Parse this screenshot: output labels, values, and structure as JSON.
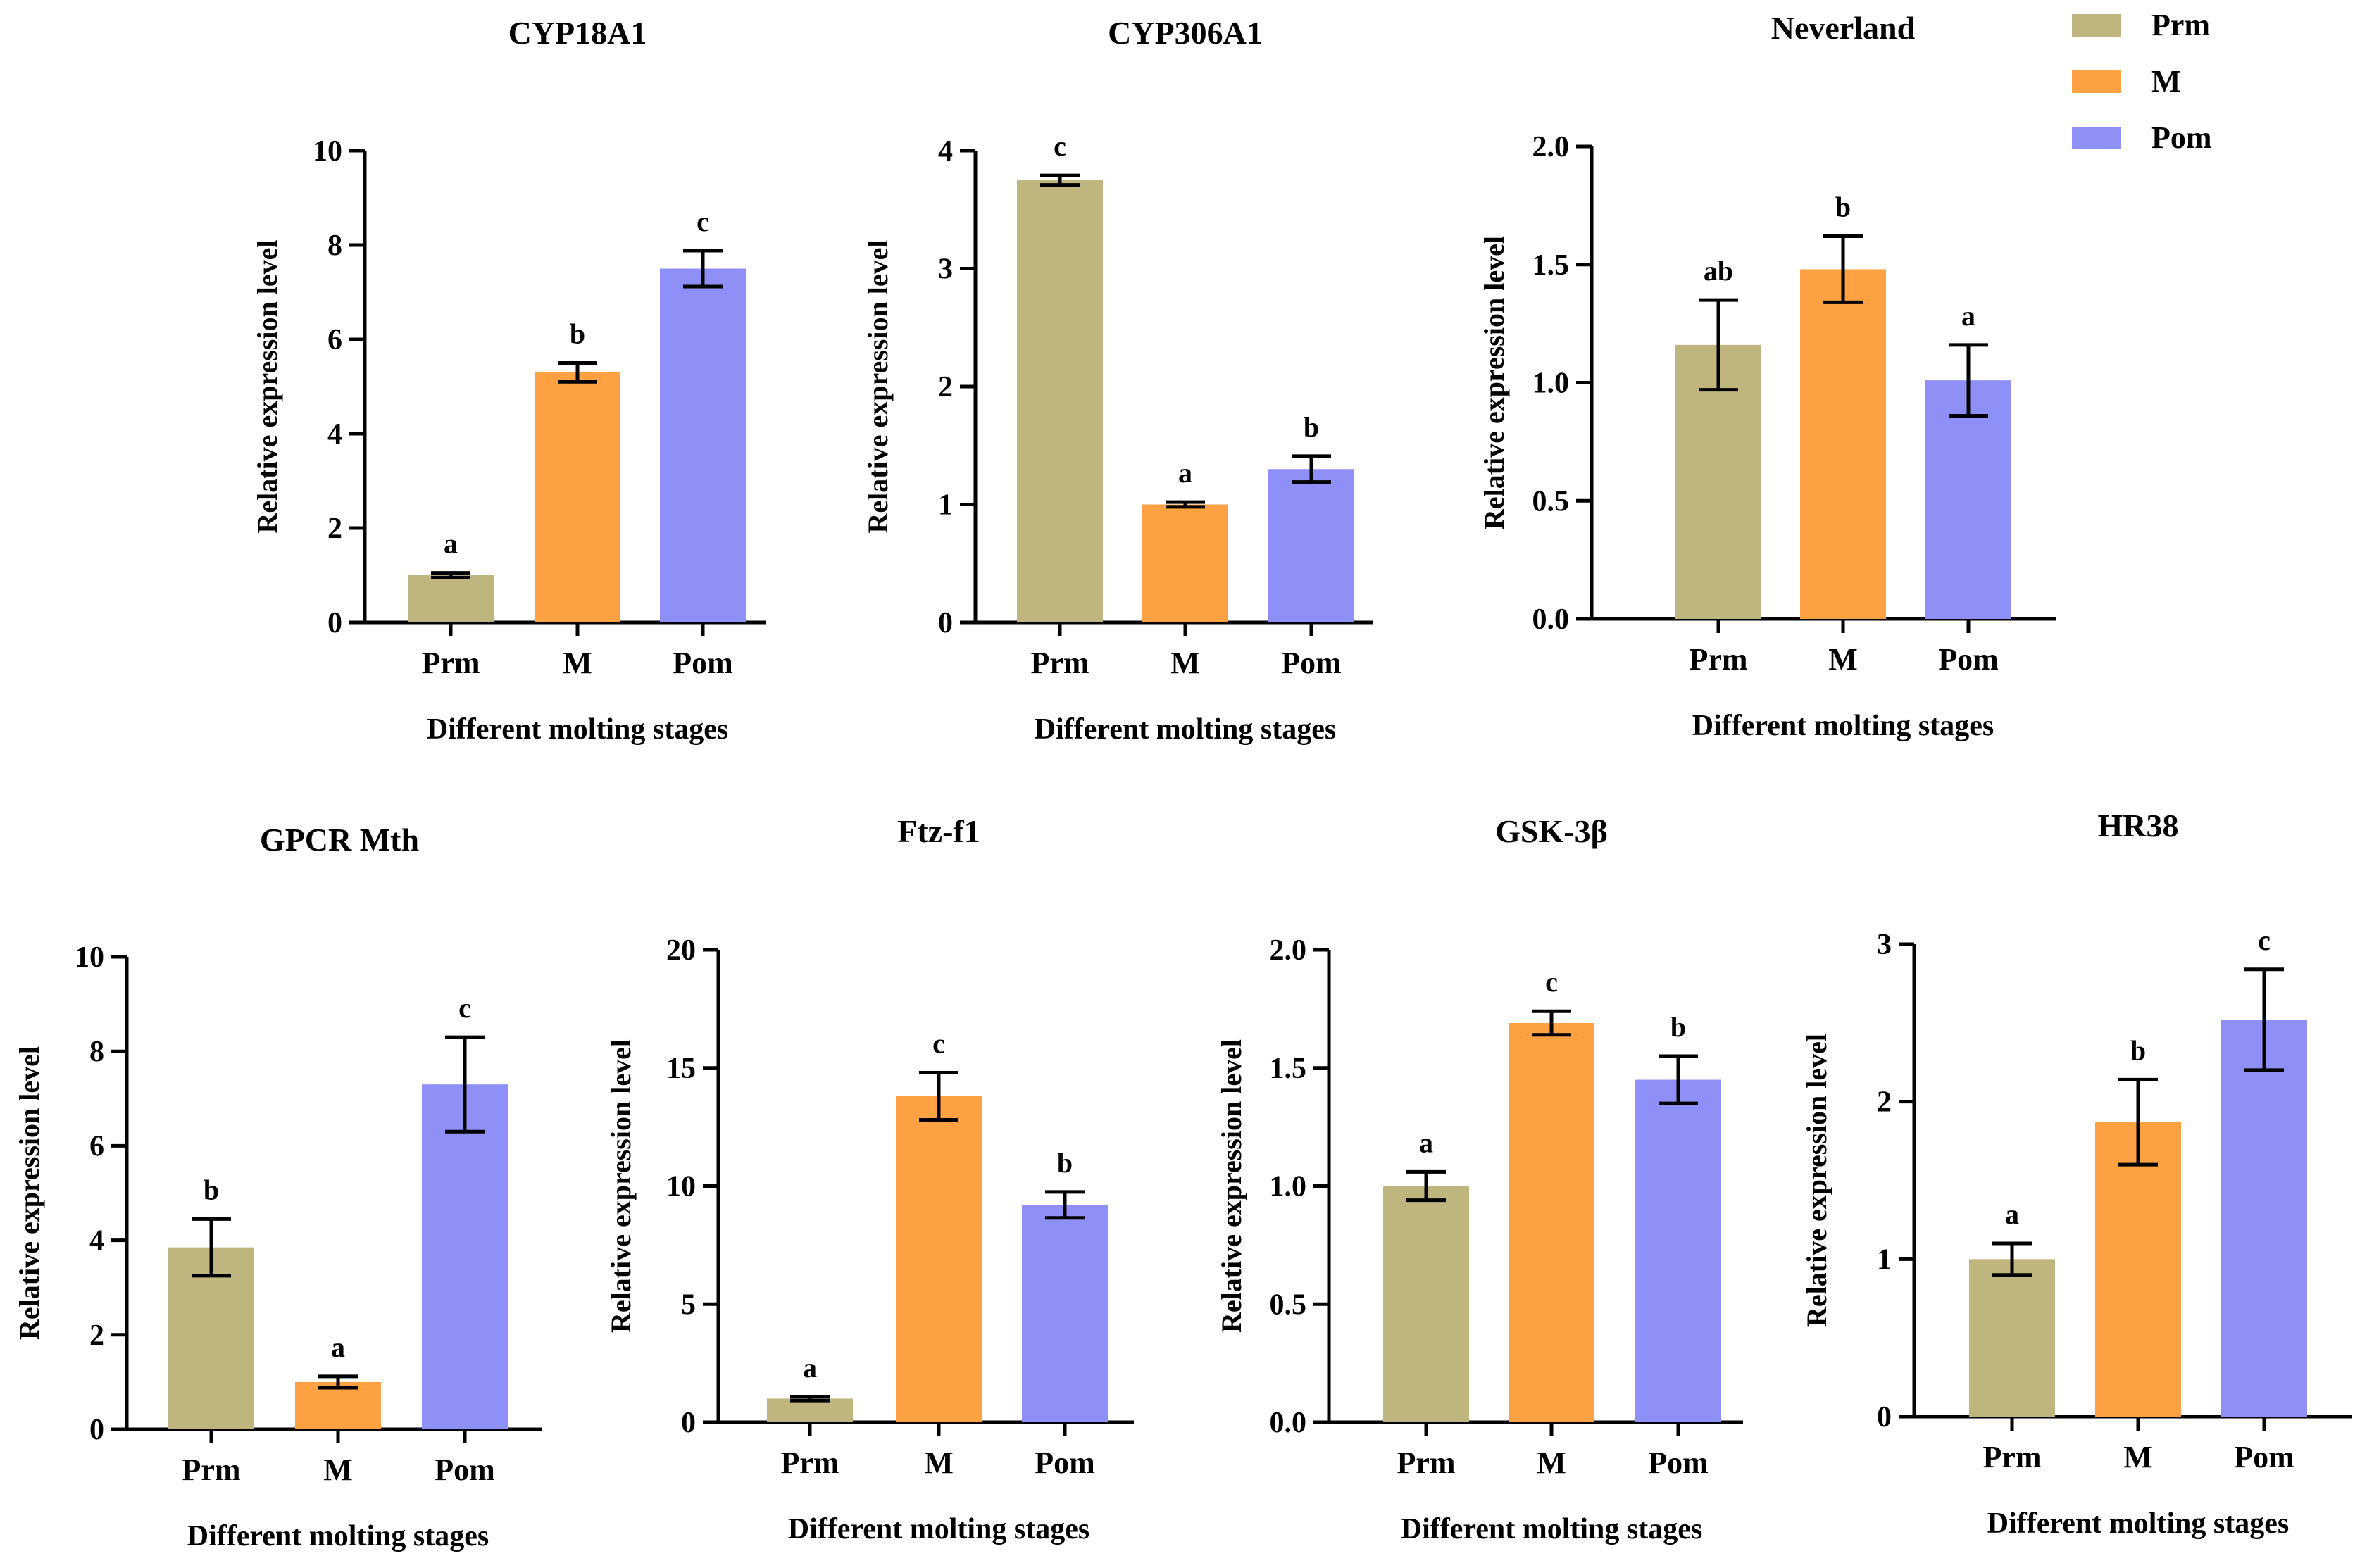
{
  "colors": {
    "Prm": "#bfb67f",
    "M": "#fda142",
    "Pom": "#8f8ff8",
    "axis": "#000000"
  },
  "legend": {
    "location": "top-right",
    "entries": [
      {
        "label": "Prm",
        "color": "#bfb67f"
      },
      {
        "label": "M",
        "color": "#fda142"
      },
      {
        "label": "Pom",
        "color": "#8f8ff8"
      }
    ]
  },
  "chart_data": [
    {
      "type": "bar",
      "title": "CYP18A1",
      "categories": [
        "Prm",
        "M",
        "Pom"
      ],
      "values": [
        1.0,
        5.3,
        7.5
      ],
      "errors": [
        0.05,
        0.2,
        0.38
      ],
      "letters": [
        "a",
        "b",
        "c"
      ],
      "xlabel": "Different molting stages",
      "ylabel": "Relative expression level",
      "ylim": [
        0,
        10
      ],
      "yticks": [
        "0",
        "2",
        "4",
        "6",
        "8",
        "10"
      ]
    },
    {
      "type": "bar",
      "title": "CYP306A1",
      "categories": [
        "Prm",
        "M",
        "Pom"
      ],
      "values": [
        3.75,
        1.0,
        1.3
      ],
      "errors": [
        0.04,
        0.02,
        0.11
      ],
      "letters": [
        "c",
        "a",
        "b"
      ],
      "xlabel": "Different molting stages",
      "ylabel": "Relative expression level",
      "ylim": [
        0,
        4
      ],
      "yticks": [
        "0",
        "1",
        "2",
        "3",
        "4"
      ]
    },
    {
      "type": "bar",
      "title": "Neverland",
      "categories": [
        "Prm",
        "M",
        "Pom"
      ],
      "values": [
        1.16,
        1.48,
        1.01
      ],
      "errors": [
        0.19,
        0.14,
        0.15
      ],
      "letters": [
        "ab",
        "b",
        "a"
      ],
      "xlabel": "Different molting stages",
      "ylabel": "Relative expression level",
      "ylim": [
        0,
        2
      ],
      "yticks": [
        "0.0",
        "0.5",
        "1.0",
        "1.5",
        "2.0"
      ]
    },
    {
      "type": "bar",
      "title": "GPCR Mth",
      "categories": [
        "Prm",
        "M",
        "Pom"
      ],
      "values": [
        3.85,
        1.0,
        7.3
      ],
      "errors": [
        0.6,
        0.12,
        1.0
      ],
      "letters": [
        "b",
        "a",
        "c"
      ],
      "xlabel": "Different molting stages",
      "ylabel": "Relative expression level",
      "ylim": [
        0,
        10
      ],
      "yticks": [
        "0",
        "2",
        "4",
        "6",
        "8",
        "10"
      ]
    },
    {
      "type": "bar",
      "title": "Ftz-f1",
      "categories": [
        "Prm",
        "M",
        "Pom"
      ],
      "values": [
        1.0,
        13.8,
        9.2
      ],
      "errors": [
        0.08,
        1.0,
        0.55
      ],
      "letters": [
        "a",
        "c",
        "b"
      ],
      "xlabel": "Different molting stages",
      "ylabel": "Relative expression level",
      "ylim": [
        0,
        20
      ],
      "yticks": [
        "0",
        "5",
        "10",
        "15",
        "20"
      ]
    },
    {
      "type": "bar",
      "title": "GSK-3β",
      "categories": [
        "Prm",
        "M",
        "Pom"
      ],
      "values": [
        1.0,
        1.69,
        1.45
      ],
      "errors": [
        0.06,
        0.05,
        0.1
      ],
      "letters": [
        "a",
        "c",
        "b"
      ],
      "xlabel": "Different molting stages",
      "ylabel": "Relative expression level",
      "ylim": [
        0,
        2
      ],
      "yticks": [
        "0.0",
        "0.5",
        "1.0",
        "1.5",
        "2.0"
      ]
    },
    {
      "type": "bar",
      "title": "HR38",
      "categories": [
        "Prm",
        "M",
        "Pom"
      ],
      "values": [
        1.0,
        1.87,
        2.52
      ],
      "errors": [
        0.1,
        0.27,
        0.32
      ],
      "letters": [
        "a",
        "b",
        "c"
      ],
      "xlabel": "Different molting stages",
      "ylabel": "Relative expression level",
      "ylim": [
        0,
        3
      ],
      "yticks": [
        "0",
        "1",
        "2",
        "3"
      ]
    }
  ]
}
